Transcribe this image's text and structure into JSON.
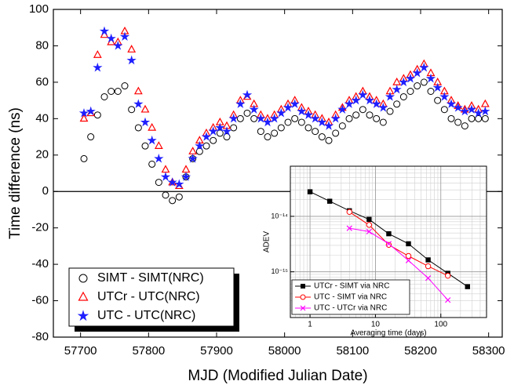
{
  "chart_data": [
    {
      "type": "scatter",
      "x_label": "MJD (Modified Julian Date)",
      "y_label": "Time difference (ns)",
      "xlim": [
        57660,
        58320
      ],
      "xticks": [
        57700,
        57800,
        57900,
        58000,
        58100,
        58200,
        58300
      ],
      "ylim": [
        -80,
        100
      ],
      "yticks": [
        -80,
        -60,
        -40,
        -20,
        0,
        20,
        40,
        60,
        80,
        100
      ],
      "zero_line": 0,
      "x": [
        57705,
        57715,
        57725,
        57735,
        57745,
        57755,
        57765,
        57775,
        57785,
        57795,
        57805,
        57815,
        57825,
        57835,
        57845,
        57855,
        57865,
        57875,
        57885,
        57895,
        57905,
        57915,
        57925,
        57935,
        57945,
        57955,
        57965,
        57975,
        57985,
        57995,
        58005,
        58015,
        58025,
        58035,
        58045,
        58055,
        58065,
        58075,
        58085,
        58095,
        58105,
        58115,
        58125,
        58135,
        58145,
        58155,
        58165,
        58175,
        58185,
        58195,
        58205,
        58215,
        58225,
        58235,
        58245,
        58255,
        58265,
        58275,
        58285,
        58295
      ],
      "series": [
        {
          "name": "SIMT - SIMT(NRC)",
          "color": "#000000",
          "marker": "circle",
          "values": [
            18,
            30,
            42,
            52,
            55,
            55,
            58,
            45,
            35,
            25,
            15,
            5,
            -2,
            -5,
            -3,
            8,
            18,
            22,
            25,
            28,
            32,
            30,
            35,
            40,
            43,
            40,
            33,
            30,
            32,
            35,
            38,
            40,
            38,
            35,
            33,
            30,
            28,
            32,
            36,
            40,
            42,
            45,
            42,
            40,
            38,
            44,
            48,
            52,
            55,
            58,
            60,
            55,
            50,
            45,
            40,
            38,
            36,
            40,
            40,
            40
          ]
        },
        {
          "name": "UTCr - UTC(NRC)",
          "color": "#ff0000",
          "marker": "triangle",
          "values": [
            40,
            43,
            75,
            86,
            82,
            82,
            88,
            78,
            55,
            45,
            35,
            25,
            12,
            5,
            3,
            12,
            22,
            28,
            32,
            35,
            38,
            36,
            42,
            50,
            52,
            48,
            42,
            40,
            42,
            45,
            48,
            50,
            46,
            44,
            42,
            40,
            38,
            42,
            46,
            50,
            52,
            55,
            52,
            50,
            48,
            55,
            60,
            62,
            64,
            67,
            70,
            65,
            60,
            55,
            50,
            47,
            45,
            47,
            45,
            48
          ]
        },
        {
          "name": "UTC - UTC(NRC)",
          "color": "#1f1fff",
          "marker": "star",
          "values": [
            43,
            44,
            68,
            88,
            84,
            80,
            85,
            72,
            48,
            38,
            28,
            18,
            8,
            5,
            4,
            8,
            18,
            25,
            30,
            33,
            35,
            33,
            40,
            48,
            53,
            45,
            40,
            38,
            40,
            43,
            46,
            48,
            44,
            42,
            40,
            38,
            36,
            40,
            45,
            48,
            50,
            53,
            50,
            48,
            46,
            52,
            56,
            60,
            62,
            65,
            68,
            62,
            57,
            52,
            48,
            46,
            44,
            45,
            43,
            44
          ]
        }
      ],
      "legend": "lower left"
    },
    {
      "type": "line",
      "x_label": "Averaging time (days)",
      "y_label": "ADEV",
      "xlog": true,
      "ylog": true,
      "grid": true,
      "xlim": [
        0.5,
        500
      ],
      "xticks": [
        1,
        10,
        100
      ],
      "ylim": [
        1.5e-16,
        8e-14
      ],
      "yticks": [
        {
          "value": 1e-15,
          "label": "10⁻¹⁵"
        },
        {
          "value": 1e-14,
          "label": "10⁻¹⁴"
        }
      ],
      "series": [
        {
          "name": "UTCr - SIMT via NRC",
          "color": "#000000",
          "marker": "square",
          "x": [
            1,
            2,
            4,
            8,
            16,
            32,
            64,
            128,
            256
          ],
          "values": [
            2.77e-14,
            1.87e-14,
            1.26e-14,
            8.8e-15,
            4.85e-15,
            3.2e-15,
            1.64e-15,
            9.4e-16,
            5.4e-16
          ]
        },
        {
          "name": "UTC - SIMT via NRC",
          "color": "#ff0000",
          "marker": "circle",
          "x": [
            4,
            8,
            16,
            32,
            64,
            128
          ],
          "values": [
            1.2e-14,
            7e-15,
            3.06e-15,
            1.93e-15,
            1.26e-15,
            8.5e-16
          ]
        },
        {
          "name": "UTC - UTCr via NRC",
          "color": "#ff00ff",
          "marker": "cross",
          "x": [
            4,
            8,
            16,
            32,
            64,
            128
          ],
          "values": [
            6.1e-15,
            5.3e-15,
            3.2e-15,
            1.6e-15,
            7.7e-16,
            3.1e-16
          ]
        }
      ],
      "legend": "lower left"
    }
  ]
}
